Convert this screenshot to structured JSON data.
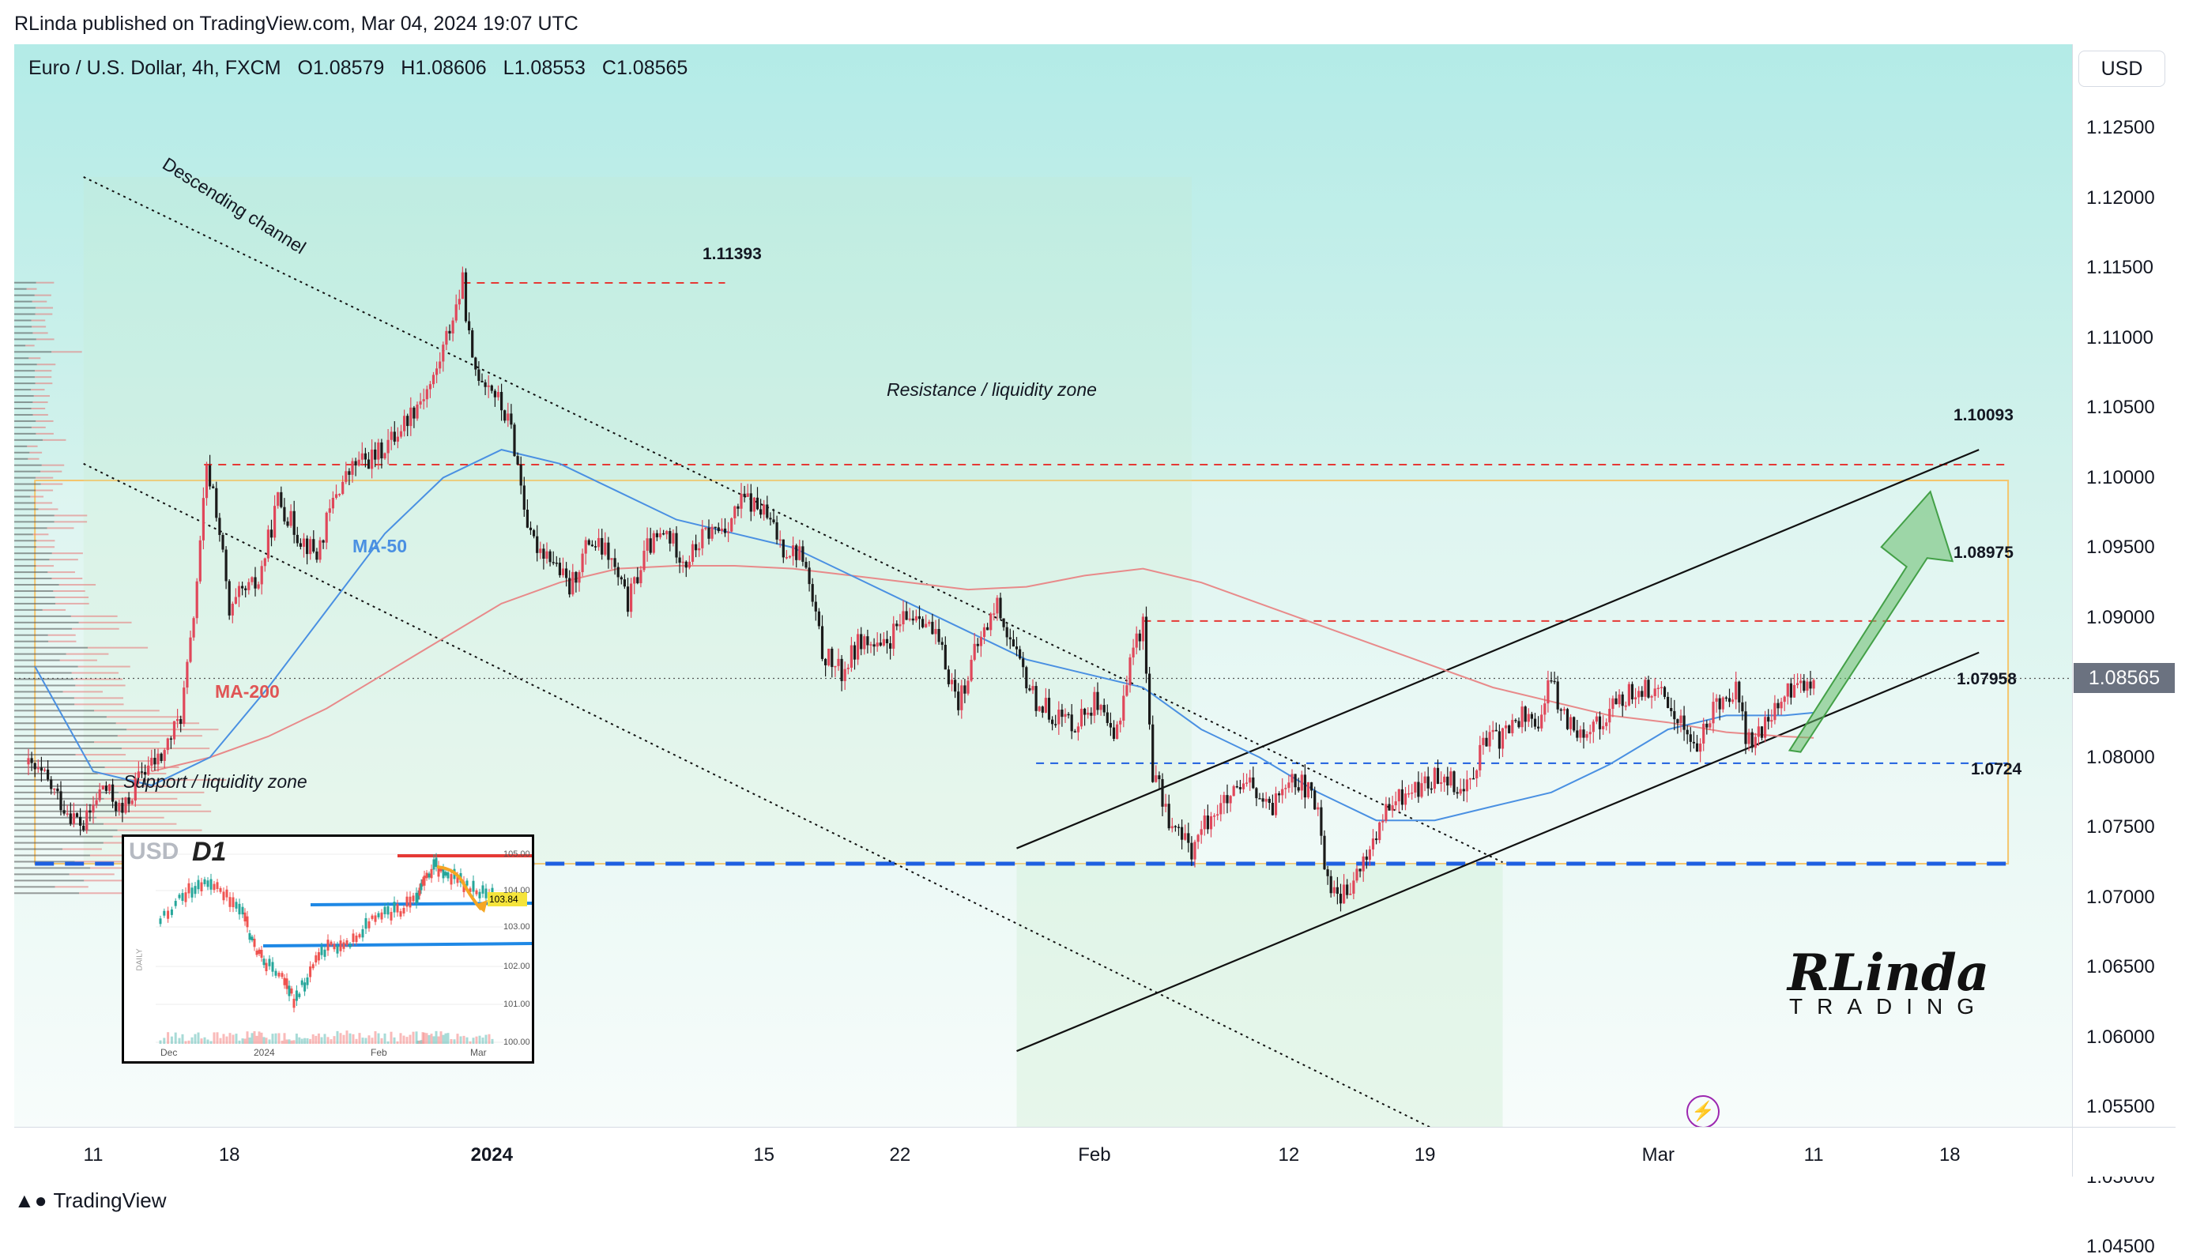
{
  "header": {
    "published": "RLinda published on TradingView.com, Mar 04, 2024 19:07 UTC"
  },
  "legend": {
    "symbol": "Euro / U.S. Dollar, 4h, FXCM",
    "open": "O1.08579",
    "high": "H1.08606",
    "low": "L1.08553",
    "close": "C1.08565"
  },
  "price_axis": {
    "currency": "USD",
    "last_price": "1.08565"
  },
  "footer": {
    "brand": "TradingView"
  },
  "annotations": {
    "descending_channel": "Descending channel",
    "resistance_zone": "Resistance / liquidity zone",
    "support_zone": "Support / liquidity zone",
    "ma50": "MA-50",
    "ma200": "MA-200"
  },
  "levels": {
    "l1": "1.11393",
    "l2": "1.10093",
    "l3": "1.08975",
    "l4": "1.07958",
    "l5": "1.0724"
  },
  "inset": {
    "title": "USD",
    "timeframe": "D1",
    "tag": "103.84",
    "axis_label": "DAILY",
    "price_ticks": [
      "105.00",
      "104.00",
      "103.00",
      "102.00",
      "101.00",
      "100.00"
    ],
    "time_ticks": [
      "Dec",
      "2024",
      "Feb",
      "Mar"
    ]
  },
  "logo": {
    "main": "RLinda",
    "sub": "TRADING"
  },
  "colors": {
    "bull": "#26a69a",
    "bear": "#ef5350",
    "ma50": "#4a90e2",
    "ma200": "#e88a8a",
    "resistance_line": "#e53935",
    "support_line": "#1e5fe0",
    "zone_border": "#f5c56b"
  },
  "chart_data": {
    "type": "candlestick",
    "symbol": "EURUSD",
    "timeframe": "4h",
    "ylim": [
      1.0425,
      1.1295
    ],
    "y_ticks": [
      "1.12500",
      "1.12000",
      "1.11500",
      "1.11000",
      "1.10500",
      "1.10000",
      "1.09500",
      "1.09000",
      "1.08500",
      "1.08000",
      "1.07500",
      "1.07000",
      "1.06500",
      "1.06000",
      "1.05500",
      "1.05000",
      "1.04500"
    ],
    "x_ticks": [
      {
        "label": "11",
        "day": 0
      },
      {
        "label": "18",
        "day": 7
      },
      {
        "label": "2024",
        "day": 20.5
      },
      {
        "label": "15",
        "day": 34.5
      },
      {
        "label": "22",
        "day": 41.5
      },
      {
        "label": "Feb",
        "day": 51.5
      },
      {
        "label": "12",
        "day": 61.5
      },
      {
        "label": "19",
        "day": 68.5
      },
      {
        "label": "Mar",
        "day": 80.5
      },
      {
        "label": "11",
        "day": 88.5
      },
      {
        "label": "18",
        "day": 95.5
      }
    ],
    "close_path": [
      [
        -3.5,
        1.0795
      ],
      [
        -2.5,
        1.0785
      ],
      [
        -1.5,
        1.0765
      ],
      [
        -0.5,
        1.075
      ],
      [
        0.5,
        1.078
      ],
      [
        1.5,
        1.076
      ],
      [
        2.5,
        1.079
      ],
      [
        3.5,
        1.08
      ],
      [
        4.5,
        1.083
      ],
      [
        5,
        1.088
      ],
      [
        5.5,
        1.095
      ],
      [
        5.8,
        1.1005
      ],
      [
        6.2,
        1.099
      ],
      [
        6.7,
        1.094
      ],
      [
        7,
        1.09
      ],
      [
        7.5,
        1.0915
      ],
      [
        8.5,
        1.0925
      ],
      [
        9.5,
        1.0985
      ],
      [
        10.5,
        1.096
      ],
      [
        11.5,
        1.0945
      ],
      [
        12.5,
        1.099
      ],
      [
        13.5,
        1.101
      ],
      [
        14.5,
        1.1015
      ],
      [
        15.5,
        1.103
      ],
      [
        16.5,
        1.105
      ],
      [
        17.5,
        1.107
      ],
      [
        18.5,
        1.1115
      ],
      [
        19,
        1.1139
      ],
      [
        19.5,
        1.108
      ],
      [
        20.5,
        1.1065
      ],
      [
        21.5,
        1.1035
      ],
      [
        22,
        1.0995
      ],
      [
        22.5,
        1.0955
      ],
      [
        23.5,
        1.0945
      ],
      [
        24.5,
        1.092
      ],
      [
        25.5,
        1.0955
      ],
      [
        26.5,
        1.0945
      ],
      [
        27.5,
        1.091
      ],
      [
        28.5,
        1.095
      ],
      [
        29.5,
        1.096
      ],
      [
        30.5,
        1.094
      ],
      [
        31.5,
        1.096
      ],
      [
        32.5,
        1.0965
      ],
      [
        33.5,
        1.0985
      ],
      [
        34.5,
        1.0975
      ],
      [
        35.5,
        1.095
      ],
      [
        36.5,
        1.0945
      ],
      [
        37.5,
        1.0875
      ],
      [
        38.5,
        1.086
      ],
      [
        39.5,
        1.0885
      ],
      [
        40.5,
        1.0875
      ],
      [
        41.5,
        1.0895
      ],
      [
        42.5,
        1.0905
      ],
      [
        43.5,
        1.088
      ],
      [
        44.5,
        1.084
      ],
      [
        45.5,
        1.088
      ],
      [
        46.5,
        1.091
      ],
      [
        47.5,
        1.087
      ],
      [
        48.5,
        1.084
      ],
      [
        49.5,
        1.083
      ],
      [
        50.5,
        1.0825
      ],
      [
        51.5,
        1.084
      ],
      [
        52.5,
        1.081
      ],
      [
        53.5,
        1.088
      ],
      [
        54,
        1.0895
      ],
      [
        54.5,
        1.079
      ],
      [
        55.5,
        1.075
      ],
      [
        56.5,
        1.0735
      ],
      [
        57.5,
        1.076
      ],
      [
        58.5,
        1.077
      ],
      [
        59.5,
        1.078
      ],
      [
        60.5,
        1.076
      ],
      [
        61.5,
        1.079
      ],
      [
        62.5,
        1.0775
      ],
      [
        63,
        1.076
      ],
      [
        63.5,
        1.071
      ],
      [
        64.5,
        1.07
      ],
      [
        65.5,
        1.073
      ],
      [
        66.5,
        1.076
      ],
      [
        67.5,
        1.0775
      ],
      [
        68.5,
        1.078
      ],
      [
        69.5,
        1.079
      ],
      [
        70.5,
        1.0775
      ],
      [
        71.5,
        1.081
      ],
      [
        72.5,
        1.0815
      ],
      [
        73.5,
        1.083
      ],
      [
        74.5,
        1.0825
      ],
      [
        75,
        1.086
      ],
      [
        75.5,
        1.083
      ],
      [
        76.5,
        1.082
      ],
      [
        77.5,
        1.0825
      ],
      [
        78.5,
        1.084
      ],
      [
        79.5,
        1.085
      ],
      [
        80.5,
        1.0845
      ],
      [
        81.5,
        1.083
      ],
      [
        82.5,
        1.0805
      ],
      [
        83.5,
        1.084
      ],
      [
        84.5,
        1.085
      ],
      [
        85,
        1.0815
      ],
      [
        85.5,
        1.081
      ],
      [
        86.5,
        1.0835
      ],
      [
        87.5,
        1.085
      ],
      [
        88.5,
        1.0857
      ]
    ],
    "ma50": [
      [
        -3,
        1.0865
      ],
      [
        0,
        1.079
      ],
      [
        3,
        1.078
      ],
      [
        6,
        1.08
      ],
      [
        9,
        1.085
      ],
      [
        12,
        1.0905
      ],
      [
        15,
        1.096
      ],
      [
        18,
        1.1
      ],
      [
        21,
        1.102
      ],
      [
        24,
        1.101
      ],
      [
        27,
        1.099
      ],
      [
        30,
        1.097
      ],
      [
        33,
        1.096
      ],
      [
        36,
        1.095
      ],
      [
        39,
        1.093
      ],
      [
        42,
        1.091
      ],
      [
        45,
        1.089
      ],
      [
        48,
        1.087
      ],
      [
        51,
        1.086
      ],
      [
        54,
        1.085
      ],
      [
        57,
        1.082
      ],
      [
        60,
        1.08
      ],
      [
        63,
        1.0775
      ],
      [
        66,
        1.0755
      ],
      [
        69,
        1.0755
      ],
      [
        72,
        1.0765
      ],
      [
        75,
        1.0775
      ],
      [
        78,
        1.0795
      ],
      [
        81,
        1.082
      ],
      [
        84,
        1.083
      ],
      [
        87,
        1.083
      ],
      [
        88.5,
        1.0832
      ]
    ],
    "ma200": [
      [
        3,
        1.079
      ],
      [
        6,
        1.08
      ],
      [
        9,
        1.0815
      ],
      [
        12,
        1.0835
      ],
      [
        15,
        1.086
      ],
      [
        18,
        1.0885
      ],
      [
        21,
        1.091
      ],
      [
        24,
        1.0925
      ],
      [
        27,
        1.0935
      ],
      [
        30,
        1.0937
      ],
      [
        33,
        1.0937
      ],
      [
        36,
        1.0935
      ],
      [
        39,
        1.093
      ],
      [
        42,
        1.0925
      ],
      [
        45,
        1.092
      ],
      [
        48,
        1.0922
      ],
      [
        51,
        1.093
      ],
      [
        54,
        1.0935
      ],
      [
        57,
        1.0925
      ],
      [
        60,
        1.091
      ],
      [
        63,
        1.0895
      ],
      [
        66,
        1.088
      ],
      [
        69,
        1.0865
      ],
      [
        72,
        1.085
      ],
      [
        75,
        1.084
      ],
      [
        78,
        1.083
      ],
      [
        81,
        1.0825
      ],
      [
        84,
        1.0818
      ],
      [
        87,
        1.0815
      ],
      [
        88.5,
        1.0814
      ]
    ],
    "horizontal_levels": [
      {
        "price": 1.11393,
        "from_day": 19,
        "to_day": 32.5,
        "style": "dashed-red"
      },
      {
        "price": 1.10093,
        "from_day": 5.7,
        "to_day": 98.5,
        "style": "dashed-red"
      },
      {
        "price": 1.08975,
        "from_day": 54,
        "to_day": 98.5,
        "style": "dashed-red"
      },
      {
        "price": 1.07958,
        "from_day": 48.5,
        "to_day": 98.5,
        "style": "dashed-blue"
      },
      {
        "price": 1.0724,
        "from_day": -3,
        "to_day": 98.5,
        "style": "thick-dashed-blue"
      }
    ],
    "trend_lines": [
      {
        "name": "descending-channel-upper",
        "from": [
          -0.5,
          1.1215
        ],
        "to": [
          72.5,
          1.0725
        ],
        "style": "dotted"
      },
      {
        "name": "descending-channel-lower",
        "from": [
          -0.5,
          1.101
        ],
        "to": [
          72.5,
          1.051
        ],
        "style": "dotted"
      },
      {
        "name": "ascending-channel-upper",
        "from": [
          47.5,
          1.0735
        ],
        "to": [
          97,
          1.102
        ],
        "style": "solid"
      },
      {
        "name": "ascending-channel-lower",
        "from": [
          47.5,
          1.059
        ],
        "to": [
          97,
          1.0875
        ],
        "style": "solid"
      }
    ],
    "zones": [
      {
        "name": "liquidity-zone",
        "x": [
          -3,
          98.5
        ],
        "y": [
          1.0724,
          1.0998
        ]
      },
      {
        "name": "channel-shade",
        "x": [
          -0.5,
          56.5
        ],
        "y": [
          1.0724,
          1.1215
        ]
      },
      {
        "name": "lower-shade",
        "x": [
          47.5,
          72.5
        ],
        "y": [
          1.051,
          1.0724
        ]
      }
    ],
    "forecast_arrow": {
      "from": [
        87.5,
        1.0805
      ],
      "to": [
        94.5,
        1.099
      ]
    },
    "last_price": 1.08565
  }
}
